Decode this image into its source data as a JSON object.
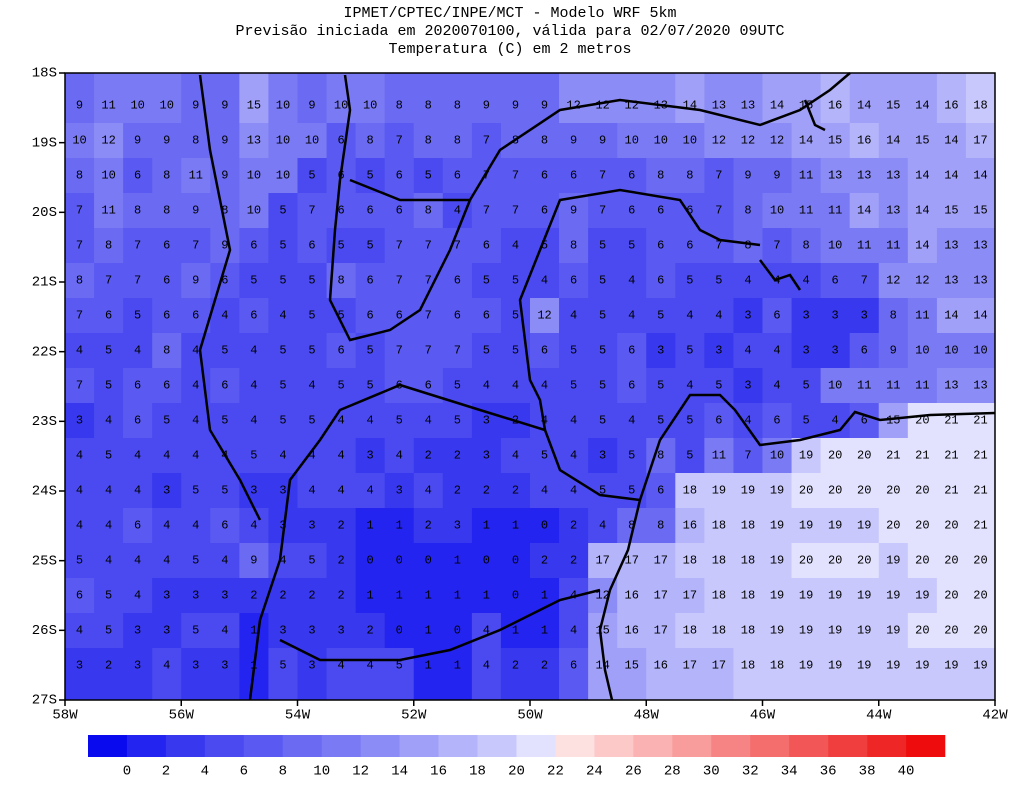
{
  "map": {
    "title": [
      "IPMET/CPTEC/INPE/MCT - Modelo WRF 5km",
      "Previsão iniciada em 2020070100, válida para 02/07/2020 09UTC",
      "Temperatura (C) em 2 metros"
    ],
    "xlim": [
      -58,
      -42
    ],
    "ylim": [
      -27,
      -18
    ],
    "xticks": [
      {
        "value": -58,
        "label": "58W"
      },
      {
        "value": -56,
        "label": "56W"
      },
      {
        "value": -54,
        "label": "54W"
      },
      {
        "value": -52,
        "label": "52W"
      },
      {
        "value": -50,
        "label": "50W"
      },
      {
        "value": -48,
        "label": "48W"
      },
      {
        "value": -46,
        "label": "46W"
      },
      {
        "value": -44,
        "label": "44W"
      },
      {
        "value": -42,
        "label": "42W"
      }
    ],
    "yticks": [
      {
        "value": -18,
        "label": "18S"
      },
      {
        "value": -19,
        "label": "19S"
      },
      {
        "value": -20,
        "label": "20S"
      },
      {
        "value": -21,
        "label": "21S"
      },
      {
        "value": -22,
        "label": "22S"
      },
      {
        "value": -23,
        "label": "23S"
      },
      {
        "value": -24,
        "label": "24S"
      },
      {
        "value": -25,
        "label": "25S"
      },
      {
        "value": -26,
        "label": "26S"
      },
      {
        "value": -27,
        "label": "27S"
      }
    ],
    "colorbar": {
      "ticks": [
        0,
        2,
        4,
        6,
        8,
        10,
        12,
        14,
        16,
        18,
        20,
        22,
        24,
        26,
        28,
        30,
        32,
        34,
        36,
        38,
        40
      ],
      "colors": [
        "#0a0aee",
        "#2424f0",
        "#3838ee",
        "#4a4af0",
        "#5a5af2",
        "#6a6af2",
        "#7a7af4",
        "#8c8cf6",
        "#a0a0f8",
        "#b4b4fa",
        "#c8c8fc",
        "#e2e2fe",
        "#fde0e0",
        "#fcc8c8",
        "#fab2b2",
        "#f89c9c",
        "#f68484",
        "#f46e6e",
        "#f25656",
        "#f03e3e",
        "#ee2626",
        "#ee0c0c"
      ]
    },
    "grid": [
      [
        9,
        11,
        10,
        10,
        9,
        9,
        15,
        10,
        9,
        10,
        10,
        8,
        8,
        8,
        9,
        9,
        9,
        12,
        12,
        12,
        13,
        14,
        13,
        13,
        14,
        15,
        16,
        14,
        15,
        14,
        16,
        18
      ],
      [
        10,
        12,
        9,
        9,
        8,
        9,
        13,
        10,
        10,
        6,
        8,
        7,
        8,
        8,
        7,
        8,
        8,
        9,
        9,
        10,
        10,
        10,
        12,
        12,
        12,
        14,
        15,
        16,
        14,
        15,
        14,
        17
      ],
      [
        8,
        10,
        6,
        8,
        11,
        9,
        10,
        10,
        5,
        6,
        5,
        6,
        5,
        6,
        7,
        7,
        6,
        6,
        7,
        6,
        8,
        8,
        7,
        9,
        9,
        11,
        13,
        13,
        13,
        14,
        14,
        14
      ],
      [
        7,
        11,
        8,
        8,
        9,
        8,
        10,
        5,
        7,
        6,
        6,
        6,
        8,
        4,
        7,
        7,
        6,
        9,
        7,
        6,
        6,
        6,
        7,
        8,
        10,
        11,
        11,
        14,
        13,
        14,
        15,
        15
      ],
      [
        7,
        8,
        7,
        6,
        7,
        9,
        6,
        5,
        6,
        5,
        5,
        7,
        7,
        7,
        6,
        4,
        5,
        8,
        5,
        5,
        6,
        6,
        7,
        8,
        7,
        8,
        10,
        11,
        11,
        14,
        13,
        13
      ],
      [
        8,
        7,
        7,
        6,
        9,
        6,
        5,
        5,
        5,
        8,
        6,
        7,
        7,
        6,
        5,
        5,
        4,
        6,
        5,
        4,
        6,
        5,
        5,
        4,
        4,
        4,
        6,
        7,
        12,
        12,
        13,
        13
      ],
      [
        7,
        6,
        5,
        6,
        6,
        4,
        6,
        4,
        5,
        5,
        6,
        6,
        7,
        6,
        6,
        5,
        12,
        4,
        5,
        4,
        5,
        4,
        4,
        3,
        6,
        3,
        3,
        3,
        8,
        11,
        14,
        14
      ],
      [
        4,
        5,
        4,
        8,
        4,
        5,
        4,
        5,
        5,
        6,
        5,
        7,
        7,
        7,
        5,
        5,
        6,
        5,
        5,
        6,
        3,
        5,
        3,
        4,
        4,
        3,
        3,
        6,
        9,
        10,
        10,
        10
      ],
      [
        7,
        5,
        6,
        6,
        4,
        6,
        4,
        5,
        4,
        5,
        5,
        6,
        6,
        5,
        4,
        4,
        4,
        5,
        5,
        6,
        5,
        4,
        5,
        3,
        4,
        5,
        10,
        11,
        11,
        11,
        13,
        13
      ],
      [
        3,
        4,
        6,
        5,
        4,
        5,
        4,
        5,
        5,
        4,
        4,
        5,
        4,
        5,
        3,
        2,
        4,
        4,
        5,
        4,
        5,
        5,
        6,
        4,
        6,
        5,
        4,
        6,
        15,
        20,
        21,
        21
      ],
      [
        4,
        5,
        4,
        4,
        4,
        4,
        5,
        4,
        4,
        4,
        3,
        4,
        2,
        2,
        3,
        4,
        5,
        4,
        3,
        5,
        8,
        5,
        11,
        7,
        10,
        19,
        20,
        20,
        21,
        21,
        21,
        21
      ],
      [
        4,
        4,
        4,
        3,
        5,
        5,
        3,
        3,
        4,
        4,
        4,
        3,
        4,
        2,
        2,
        2,
        4,
        4,
        5,
        5,
        6,
        18,
        19,
        19,
        19,
        20,
        20,
        20,
        20,
        20,
        21,
        21
      ],
      [
        4,
        4,
        6,
        4,
        4,
        6,
        4,
        3,
        3,
        2,
        1,
        1,
        2,
        3,
        1,
        1,
        0,
        2,
        4,
        8,
        8,
        16,
        18,
        18,
        19,
        19,
        19,
        19,
        20,
        20,
        20,
        21
      ],
      [
        5,
        4,
        4,
        4,
        5,
        4,
        9,
        4,
        5,
        2,
        0,
        0,
        0,
        1,
        0,
        0,
        2,
        2,
        17,
        17,
        17,
        18,
        18,
        18,
        19,
        20,
        20,
        20,
        19,
        20,
        20,
        20
      ],
      [
        6,
        5,
        4,
        3,
        3,
        3,
        2,
        2,
        2,
        2,
        1,
        1,
        1,
        1,
        1,
        0,
        1,
        4,
        12,
        16,
        17,
        17,
        18,
        18,
        19,
        19,
        19,
        19,
        19,
        19,
        20,
        20
      ],
      [
        4,
        5,
        3,
        3,
        5,
        4,
        1,
        3,
        3,
        3,
        2,
        0,
        1,
        0,
        4,
        1,
        1,
        4,
        15,
        16,
        17,
        18,
        18,
        18,
        19,
        19,
        19,
        19,
        19,
        20,
        20,
        20
      ],
      [
        3,
        2,
        3,
        4,
        3,
        3,
        1,
        5,
        3,
        4,
        4,
        5,
        1,
        1,
        4,
        2,
        2,
        6,
        14,
        15,
        16,
        17,
        17,
        18,
        18,
        19,
        19,
        19,
        19,
        19,
        19,
        19
      ]
    ]
  }
}
